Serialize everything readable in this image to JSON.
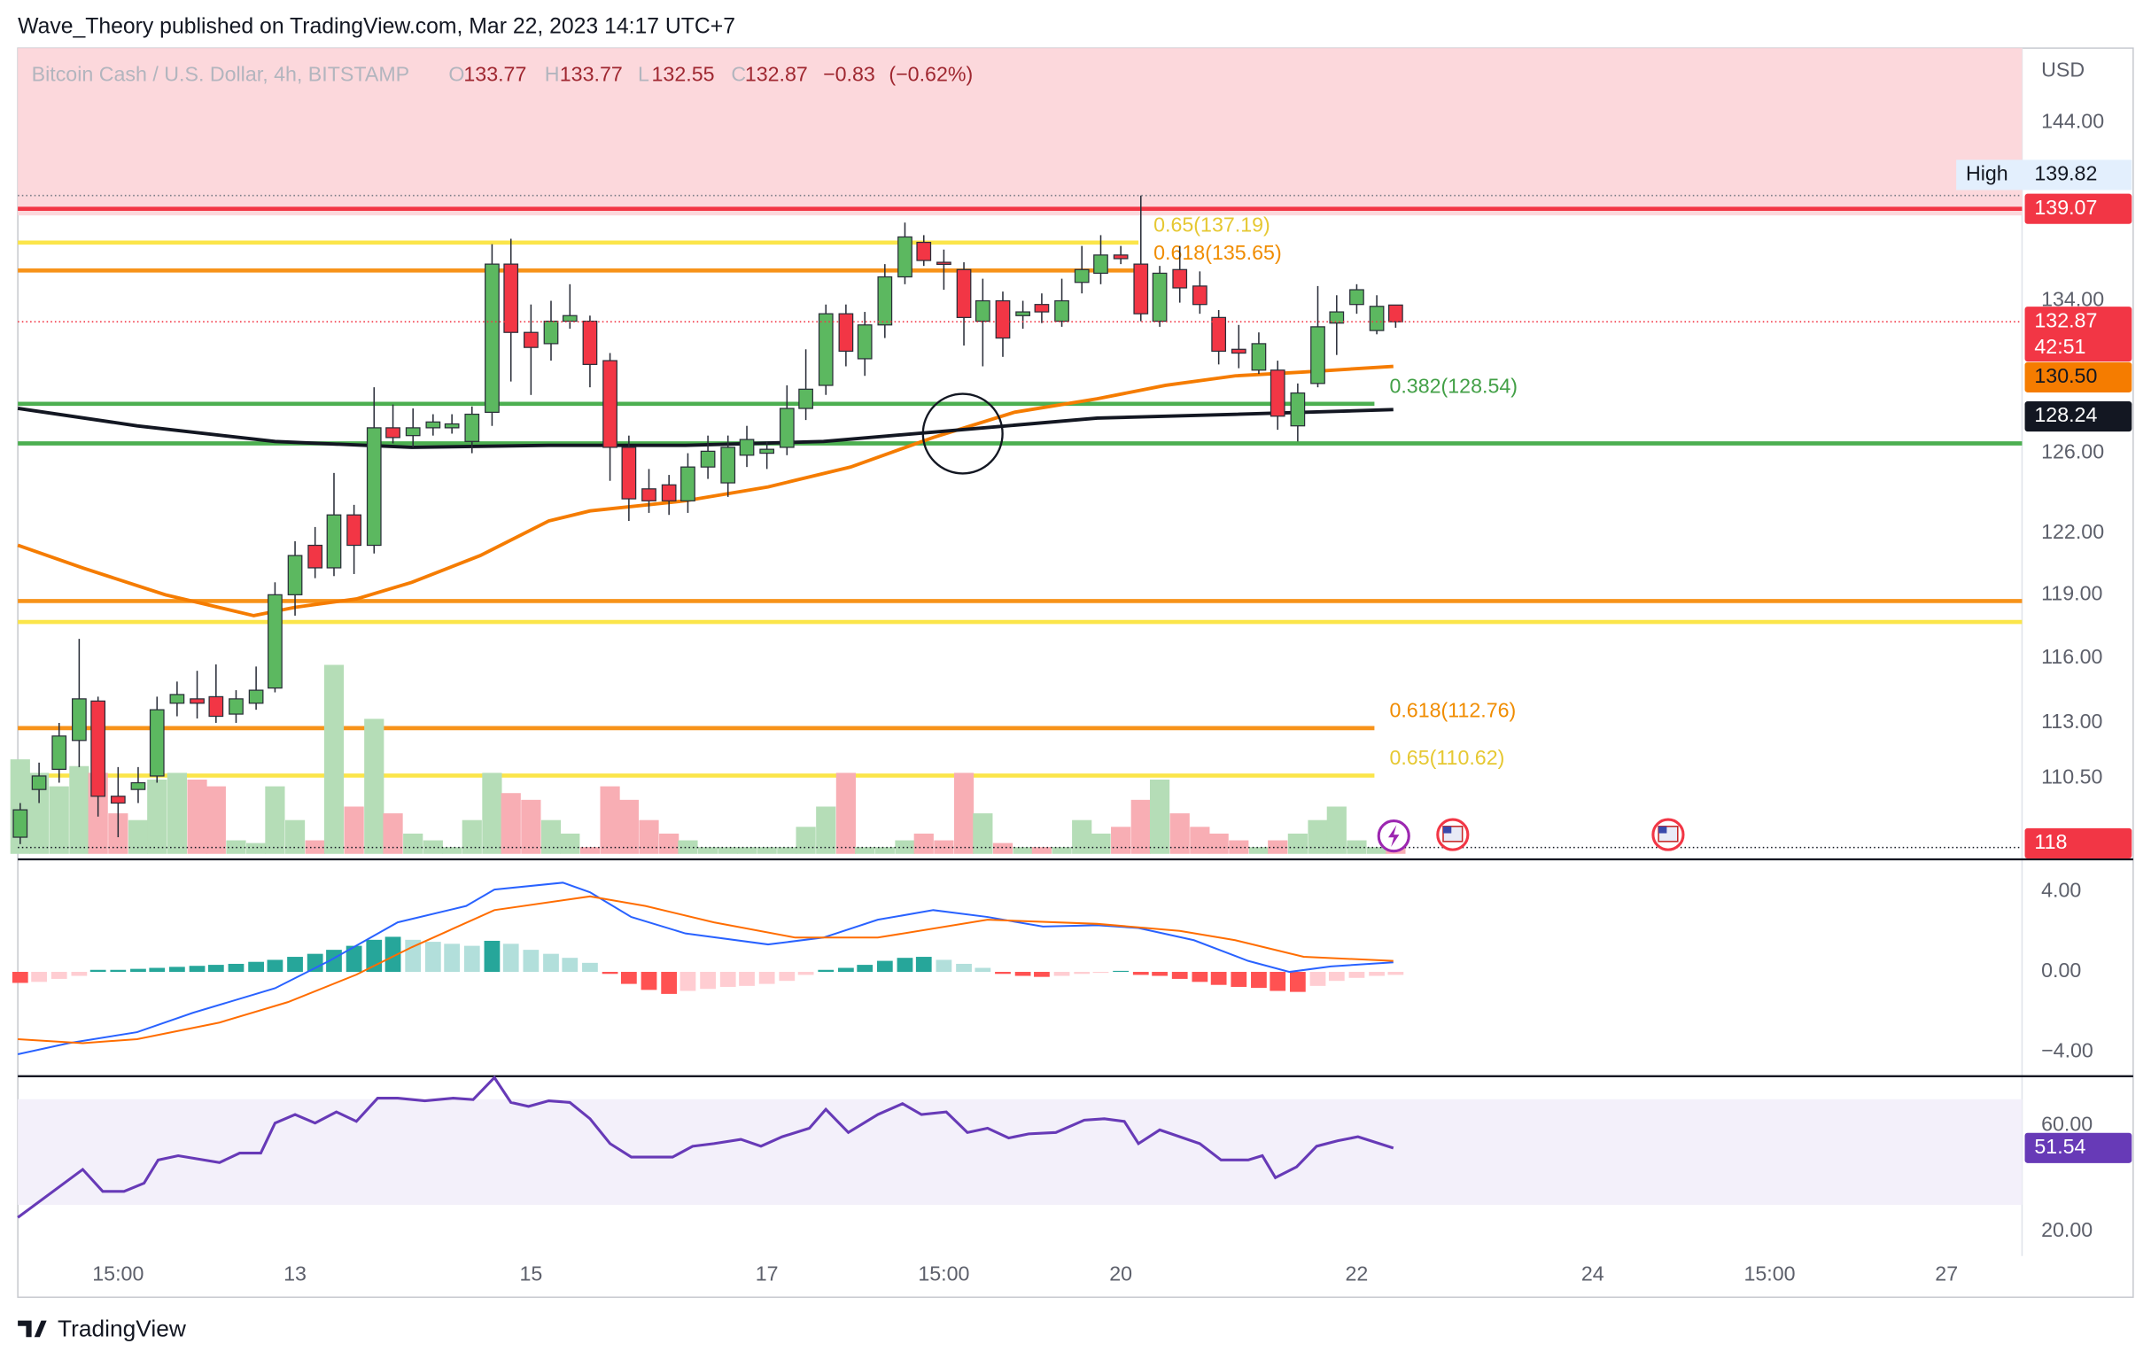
{
  "header": "Wave_Theory published on TradingView.com, Mar 22, 2023 14:17 UTC+7",
  "footer": "TradingView",
  "chart_data": {
    "type": "candlestick",
    "title": "Bitcoin Cash / U.S. Dollar, 4h, BITSTAMP",
    "ohlc_letters": [
      "O",
      "H",
      "L",
      "C"
    ],
    "change": {
      "value": -0.83,
      "label": "−0.83"
    },
    "change_percent": {
      "value": -0.62,
      "label": "(−0.62%)"
    },
    "countdown": "42:51",
    "currency": "USD",
    "log_scale": true,
    "up_color": "#5cb860",
    "down_color": "#f23645",
    "border_color": "#2a2e39",
    "x": [
      10.67,
      10.83,
      11,
      11.17,
      11.33,
      11.5,
      11.67,
      11.83,
      12,
      12.17,
      12.33,
      12.5,
      12.67,
      12.83,
      13,
      13.17,
      13.33,
      13.5,
      13.67,
      13.83,
      14,
      14.17,
      14.33,
      14.5,
      14.67,
      14.83,
      15,
      15.17,
      15.33,
      15.5,
      15.67,
      15.83,
      16,
      16.17,
      16.33,
      16.5,
      16.67,
      16.83,
      17,
      17.17,
      17.33,
      17.5,
      17.67,
      17.83,
      18,
      18.17,
      18.33,
      18.5,
      18.67,
      18.83,
      19,
      19.17,
      19.33,
      19.5,
      19.67,
      19.83,
      20,
      20.17,
      20.33,
      20.5,
      20.67,
      20.83,
      21,
      21.17,
      21.33,
      21.5,
      21.67,
      21.83,
      22,
      22.17,
      22.33
    ],
    "open": [
      107.9,
      110.0,
      110.9,
      112.2,
      114.0,
      109.7,
      110.0,
      110.6,
      113.9,
      114.1,
      114.2,
      113.4,
      113.9,
      114.6,
      119.0,
      121.4,
      120.3,
      122.9,
      121.4,
      127.3,
      126.9,
      127.3,
      127.3,
      126.6,
      128.1,
      136.0,
      132.3,
      131.7,
      132.9,
      132.9,
      130.8,
      126.3,
      124.2,
      124.4,
      123.6,
      125.3,
      124.5,
      125.9,
      126.0,
      126.3,
      128.3,
      129.5,
      133.3,
      130.9,
      132.7,
      135.3,
      137.2,
      136.1,
      135.7,
      132.9,
      134.0,
      133.2,
      133.8,
      132.9,
      135.0,
      135.5,
      136.5,
      136.0,
      132.9,
      135.7,
      134.8,
      133.1,
      131.4,
      130.3,
      130.3,
      127.4,
      129.6,
      132.8,
      133.8,
      132.4,
      133.77
    ],
    "high": [
      109.4,
      111.2,
      113.0,
      116.9,
      114.2,
      111.0,
      111.0,
      114.2,
      114.9,
      115.4,
      115.7,
      114.5,
      115.6,
      119.6,
      121.6,
      122.3,
      125.0,
      123.4,
      129.4,
      128.5,
      128.3,
      128.0,
      128.0,
      128.4,
      137.1,
      137.4,
      133.8,
      134.0,
      134.9,
      133.2,
      131.2,
      126.9,
      125.2,
      124.9,
      126.0,
      126.9,
      126.9,
      127.4,
      126.6,
      129.5,
      131.4,
      133.8,
      133.8,
      133.4,
      136.0,
      138.3,
      137.6,
      136.8,
      136.1,
      135.2,
      134.5,
      134.0,
      134.4,
      135.2,
      137.0,
      137.6,
      137.0,
      139.82,
      135.9,
      137.0,
      135.6,
      133.5,
      132.7,
      132.3,
      130.8,
      129.6,
      134.8,
      134.3,
      134.9,
      134.3,
      133.77
    ],
    "low": [
      107.6,
      109.4,
      110.3,
      111.0,
      108.8,
      107.9,
      109.4,
      110.3,
      113.3,
      113.2,
      113.0,
      113.0,
      113.6,
      114.4,
      118.0,
      119.8,
      119.9,
      120.0,
      121.0,
      126.5,
      126.3,
      126.9,
      127.0,
      126.0,
      127.4,
      129.7,
      129.0,
      130.8,
      132.5,
      129.4,
      124.6,
      122.6,
      123.0,
      122.9,
      123.0,
      124.7,
      123.8,
      125.3,
      125.2,
      125.9,
      127.7,
      129.0,
      130.5,
      130.0,
      132.0,
      134.9,
      135.9,
      134.6,
      131.6,
      130.5,
      131.0,
      132.5,
      132.8,
      132.6,
      134.4,
      134.9,
      136.0,
      132.9,
      132.6,
      133.9,
      133.3,
      130.6,
      130.4,
      130.1,
      127.2,
      126.6,
      129.4,
      131.1,
      133.3,
      132.2,
      132.55
    ],
    "close": [
      109.1,
      110.6,
      112.4,
      114.1,
      109.7,
      109.4,
      110.3,
      113.6,
      114.3,
      113.9,
      113.3,
      114.1,
      114.5,
      119.0,
      120.9,
      120.3,
      122.9,
      121.4,
      127.3,
      126.8,
      127.3,
      127.6,
      127.5,
      128.0,
      136.0,
      132.3,
      131.5,
      132.9,
      133.2,
      130.6,
      126.3,
      123.7,
      123.6,
      123.6,
      125.3,
      126.1,
      126.3,
      126.7,
      126.2,
      128.3,
      129.3,
      133.3,
      131.3,
      132.7,
      135.3,
      137.5,
      136.2,
      136.0,
      133.1,
      134.0,
      132.0,
      133.4,
      133.4,
      134.0,
      135.7,
      136.5,
      136.3,
      133.3,
      135.5,
      134.7,
      133.8,
      131.3,
      131.2,
      131.7,
      127.9,
      129.1,
      132.6,
      133.4,
      134.6,
      133.7,
      132.87
    ],
    "volume": [
      1750,
      1500,
      1250,
      1625,
      1500,
      750,
      625,
      1375,
      1500,
      1375,
      1250,
      250,
      200,
      1250,
      625,
      250,
      3500,
      875,
      2500,
      750,
      375,
      250,
      125,
      625,
      1500,
      1125,
      1000,
      625,
      375,
      125,
      1250,
      1000,
      625,
      375,
      250,
      125,
      125,
      125,
      125,
      125,
      500,
      875,
      1500,
      125,
      125,
      250,
      375,
      250,
      1500,
      750,
      200,
      125,
      125,
      125,
      625,
      375,
      500,
      1000,
      1375,
      750,
      500,
      375,
      250,
      125,
      250,
      375,
      625,
      875,
      250,
      125,
      118
    ],
    "volume_lim": [
      0,
      15000
    ],
    "volume_colors": {
      "up": "#b5ddb7",
      "down": "#f8aeb4"
    },
    "xlim": [
      10.65,
      27.64
    ],
    "xticks": [
      {
        "value": 11.5,
        "label": "15:00"
      },
      13,
      15,
      17,
      {
        "value": 18.5,
        "label": "15:00"
      },
      20,
      22,
      24,
      {
        "value": 25.5,
        "label": "15:00"
      },
      27
    ],
    "ylim": [
      107,
      148.4
    ],
    "yticks": [
      {
        "value": 144,
        "label": "144.00"
      },
      {
        "value": 134,
        "label": "134.00"
      },
      {
        "value": 126,
        "label": "126.00"
      },
      {
        "value": 122,
        "label": "122.00"
      },
      {
        "value": 119,
        "label": "119.00"
      },
      {
        "value": 116,
        "label": "116.00"
      },
      {
        "value": 113,
        "label": "113.00"
      },
      {
        "value": 110.5,
        "label": "110.50"
      }
    ],
    "zone": {
      "low": 138.7,
      "color": "#fcd8dc"
    },
    "high_marker": {
      "name": "High",
      "value": 139.82
    },
    "levels": [
      {
        "value": 139.07,
        "color": "#f23645",
        "tag": true
      },
      {
        "value": 137.19,
        "color": "#fbe54a",
        "x_end": 20.15,
        "label": "0.65(137.19)",
        "label_color": "#e6c832"
      },
      {
        "value": 135.65,
        "color": "#f7931a",
        "x_end": 20.15,
        "label": "0.618(135.65)",
        "label_color": "#f08c00"
      },
      {
        "value": 128.54,
        "color": "#4caf50",
        "x_end": 22.15,
        "label": "0.382(128.54)",
        "label_color": "#43a047"
      },
      {
        "value": 126.5,
        "color": "#4caf50"
      },
      {
        "value": 118.7,
        "color": "#f7931a"
      },
      {
        "value": 117.7,
        "color": "#fbe54a"
      },
      {
        "value": 112.76,
        "color": "#f7931a",
        "x_end": 22.15,
        "label": "0.618(112.76)",
        "label_color": "#f08c00"
      },
      {
        "value": 110.62,
        "color": "#fbe54a",
        "x_end": 22.15,
        "label": "0.65(110.62)",
        "label_color": "#e6c832"
      }
    ],
    "moving_averages": [
      {
        "color": "#f57c00",
        "x": [
          10.65,
          11.2,
          11.9,
          12.65,
          13,
          13.52,
          13.99,
          14.57,
          15.15,
          15.5,
          16.31,
          17.01,
          17.71,
          18.41,
          19.1,
          19.8,
          20.38,
          20.97,
          21.55,
          22.31
        ],
        "values": [
          121.4,
          120.3,
          119.0,
          118.0,
          118.4,
          118.8,
          119.6,
          120.9,
          122.6,
          123.1,
          123.6,
          124.3,
          125.3,
          126.8,
          128.1,
          128.8,
          129.5,
          130.0,
          130.2,
          130.5
        ],
        "last_label": "130.50"
      },
      {
        "color": "#131722",
        "x": [
          10.65,
          11.66,
          12.83,
          13.99,
          15.15,
          16.31,
          17.48,
          18.64,
          19.8,
          20.97,
          22.31
        ],
        "values": [
          128.3,
          127.4,
          126.6,
          126.3,
          126.4,
          126.4,
          126.6,
          127.2,
          127.8,
          128.0,
          128.24
        ]
      }
    ],
    "annotation_circle": {
      "x": 18.66,
      "value": 127.0
    },
    "macd": {
      "ylim": [
        -5.14,
        5.48
      ],
      "yticks": [
        {
          "value": 4,
          "label": "4.00"
        },
        {
          "value": 0,
          "label": "0.00"
        },
        {
          "value": -4,
          "label": "−4.00"
        }
      ],
      "histogram": [
        -0.55,
        -0.5,
        -0.35,
        -0.2,
        0.1,
        0.1,
        0.15,
        0.2,
        0.25,
        0.3,
        0.35,
        0.4,
        0.5,
        0.6,
        0.75,
        0.9,
        1.1,
        1.3,
        1.6,
        1.75,
        1.6,
        1.5,
        1.4,
        1.3,
        1.55,
        1.4,
        1.1,
        0.9,
        0.7,
        0.45,
        -0.1,
        -0.6,
        -0.9,
        -1.1,
        -0.95,
        -0.85,
        -0.75,
        -0.7,
        -0.6,
        -0.45,
        -0.15,
        0.1,
        0.2,
        0.35,
        0.55,
        0.7,
        0.75,
        0.6,
        0.4,
        0.2,
        -0.1,
        -0.2,
        -0.25,
        -0.2,
        -0.1,
        -0.05,
        0.05,
        -0.15,
        -0.2,
        -0.35,
        -0.5,
        -0.65,
        -0.75,
        -0.8,
        -0.95,
        -1.0,
        -0.7,
        -0.45,
        -0.3,
        -0.2,
        -0.15
      ],
      "hist_colors": {
        "up_grow": "#26a69a",
        "up_fall": "#b2dfdb",
        "down_grow": "#ff5252",
        "down_fall": "#ffcdd2"
      },
      "lines": [
        {
          "color": "#2962ff",
          "x": [
            10.65,
            11.08,
            11.66,
            12.13,
            12.83,
            13.29,
            13.87,
            14.45,
            14.69,
            15.27,
            15.5,
            15.85,
            16.31,
            17.01,
            17.48,
            17.94,
            18.41,
            18.87,
            19.34,
            19.8,
            20.15,
            20.62,
            21.08,
            21.43,
            21.78,
            22.31
          ],
          "values": [
            -4.11,
            -3.56,
            -3.01,
            -2.05,
            -0.82,
            0.55,
            2.47,
            3.29,
            4.11,
            4.45,
            3.97,
            2.74,
            1.92,
            1.37,
            1.71,
            2.6,
            3.08,
            2.74,
            2.26,
            2.33,
            2.19,
            1.58,
            0.55,
            0,
            0.27,
            0.48
          ]
        },
        {
          "color": "#ff6d00",
          "x": [
            10.65,
            11.2,
            11.66,
            12.36,
            12.94,
            13.52,
            13.99,
            14.69,
            15.5,
            15.97,
            16.55,
            17.24,
            17.94,
            18.87,
            19.8,
            20.5,
            20.97,
            21.55,
            22.31
          ],
          "values": [
            -3.36,
            -3.56,
            -3.36,
            -2.53,
            -1.51,
            -0.14,
            1.23,
            3.08,
            3.77,
            3.29,
            2.47,
            1.71,
            1.71,
            2.6,
            2.4,
            2.05,
            1.58,
            0.75,
            0.55
          ]
        }
      ]
    },
    "rsi": {
      "ylim": [
        10.6,
        78.2
      ],
      "yticks": [
        {
          "value": 60,
          "label": "60.00"
        },
        {
          "value": 20,
          "label": "20.00"
        }
      ],
      "band": [
        30,
        70
      ],
      "band_color": "#f3f0fa",
      "color": "#673ab7",
      "x": [
        10.65,
        11.2,
        11.37,
        11.55,
        11.72,
        11.84,
        12.01,
        12.36,
        12.53,
        12.71,
        12.83,
        13,
        13.17,
        13.35,
        13.52,
        13.7,
        13.87,
        14.1,
        14.34,
        14.51,
        14.69,
        14.83,
        14.98,
        15.15,
        15.33,
        15.5,
        15.67,
        15.85,
        16.08,
        16.2,
        16.37,
        16.55,
        16.78,
        16.95,
        17.13,
        17.36,
        17.5,
        17.69,
        17.94,
        18.15,
        18.31,
        18.52,
        18.7,
        18.87,
        19.05,
        19.22,
        19.45,
        19.69,
        19.86,
        20.03,
        20.15,
        20.33,
        20.5,
        20.67,
        20.85,
        21.08,
        21.2,
        21.31,
        21.49,
        21.66,
        21.84,
        22.01,
        22.31
      ],
      "values": [
        25.2,
        43.4,
        35.1,
        35.1,
        38.2,
        47.0,
        48.6,
        46.0,
        49.6,
        49.6,
        61.0,
        64.2,
        61.0,
        65.2,
        61.6,
        70.4,
        70.4,
        69.4,
        70.4,
        69.9,
        78.2,
        68.8,
        67.3,
        69.4,
        68.8,
        62.6,
        53.2,
        48.1,
        48.1,
        48.1,
        52.2,
        53.2,
        54.8,
        52.2,
        55.8,
        59.0,
        66.2,
        57.4,
        64.2,
        68.3,
        64.2,
        65.2,
        57.4,
        59.0,
        55.3,
        56.9,
        57.4,
        62.1,
        62.6,
        61.6,
        53.2,
        58.4,
        55.8,
        53.2,
        47.0,
        47.0,
        48.6,
        40.3,
        44.4,
        52.2,
        54.3,
        55.8,
        51.54
      ]
    }
  }
}
